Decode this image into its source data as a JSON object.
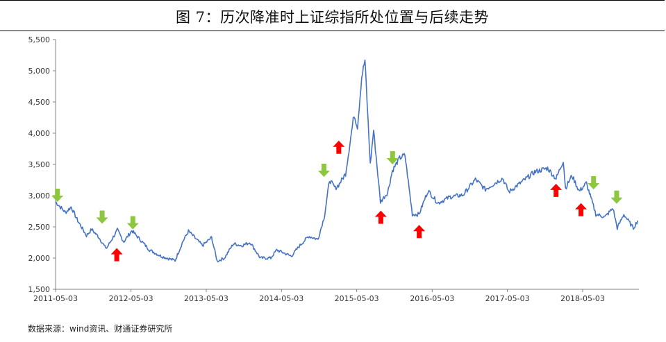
{
  "title": "图 7：历次降准时上证综指所处位置与后续走势",
  "source": "数据来源：wind资讯、财通证券研究所",
  "colors": {
    "line": "#4472C4",
    "up_arrow": "#FF0000",
    "down_arrow": "#8DC63F",
    "axis": "#808080"
  },
  "chart_data": {
    "type": "line",
    "title": "图 7：历次降准时上证综指所处位置与后续走势",
    "xlabel": "",
    "ylabel": "",
    "ylim": [
      1500,
      5500
    ],
    "yticks": [
      1500,
      2000,
      2500,
      3000,
      3500,
      4000,
      4500,
      5000,
      5500
    ],
    "ytick_labels": [
      "1,500",
      "2,000",
      "2,500",
      "3,000",
      "3,500",
      "4,000",
      "4,500",
      "5,000",
      "5,500"
    ],
    "xlim": [
      "2011-05-03",
      "2019-01-31"
    ],
    "xticks": [
      "2011-05-03",
      "2012-05-03",
      "2013-05-03",
      "2014-05-03",
      "2015-05-03",
      "2016-05-03",
      "2017-05-03",
      "2018-05-03"
    ],
    "grid": false,
    "legend": "none",
    "series": [
      {
        "points": [
          [
            "2011-05-03",
            2900
          ],
          [
            "2011-06-20",
            2730
          ],
          [
            "2011-07-18",
            2820
          ],
          [
            "2011-08-15",
            2620
          ],
          [
            "2011-09-30",
            2360
          ],
          [
            "2011-10-25",
            2460
          ],
          [
            "2011-11-30",
            2330
          ],
          [
            "2011-12-28",
            2180
          ],
          [
            "2012-01-06",
            2160
          ],
          [
            "2012-02-27",
            2450
          ],
          [
            "2012-03-29",
            2260
          ],
          [
            "2012-05-07",
            2440
          ],
          [
            "2012-06-15",
            2300
          ],
          [
            "2012-08-01",
            2130
          ],
          [
            "2012-09-26",
            2030
          ],
          [
            "2012-12-03",
            1960
          ],
          [
            "2013-01-10",
            2270
          ],
          [
            "2013-02-06",
            2430
          ],
          [
            "2013-04-15",
            2200
          ],
          [
            "2013-05-29",
            2330
          ],
          [
            "2013-06-25",
            1950
          ],
          [
            "2013-07-30",
            2000
          ],
          [
            "2013-09-12",
            2230
          ],
          [
            "2013-10-21",
            2200
          ],
          [
            "2013-12-03",
            2250
          ],
          [
            "2014-01-20",
            2000
          ],
          [
            "2014-03-12",
            2000
          ],
          [
            "2014-04-10",
            2130
          ],
          [
            "2014-06-20",
            2030
          ],
          [
            "2014-07-28",
            2190
          ],
          [
            "2014-09-12",
            2350
          ],
          [
            "2014-10-27",
            2300
          ],
          [
            "2014-11-28",
            2680
          ],
          [
            "2014-12-22",
            3250
          ],
          [
            "2015-01-19",
            3120
          ],
          [
            "2015-02-04",
            3170
          ],
          [
            "2015-03-10",
            3350
          ],
          [
            "2015-04-20",
            4300
          ],
          [
            "2015-05-07",
            4100
          ],
          [
            "2015-05-27",
            4900
          ],
          [
            "2015-06-12",
            5170
          ],
          [
            "2015-07-08",
            3500
          ],
          [
            "2015-07-24",
            4050
          ],
          [
            "2015-08-26",
            2900
          ],
          [
            "2015-09-30",
            3050
          ],
          [
            "2015-10-23",
            3400
          ],
          [
            "2015-11-27",
            3600
          ],
          [
            "2015-12-23",
            3650
          ],
          [
            "2016-01-28",
            2700
          ],
          [
            "2016-02-29",
            2700
          ],
          [
            "2016-04-13",
            3080
          ],
          [
            "2016-05-31",
            2880
          ],
          [
            "2016-07-29",
            2980
          ],
          [
            "2016-09-30",
            3010
          ],
          [
            "2016-11-29",
            3260
          ],
          [
            "2017-01-16",
            3100
          ],
          [
            "2017-04-10",
            3280
          ],
          [
            "2017-05-10",
            3060
          ],
          [
            "2017-07-24",
            3250
          ],
          [
            "2017-09-12",
            3380
          ],
          [
            "2017-11-14",
            3440
          ],
          [
            "2017-12-25",
            3270
          ],
          [
            "2018-01-29",
            3560
          ],
          [
            "2018-02-09",
            3120
          ],
          [
            "2018-03-12",
            3320
          ],
          [
            "2018-04-17",
            3070
          ],
          [
            "2018-05-21",
            3200
          ],
          [
            "2018-06-20",
            2880
          ],
          [
            "2018-07-06",
            2700
          ],
          [
            "2018-08-20",
            2660
          ],
          [
            "2018-09-27",
            2800
          ],
          [
            "2018-10-18",
            2480
          ],
          [
            "2018-11-19",
            2700
          ],
          [
            "2018-12-14",
            2580
          ],
          [
            "2019-01-04",
            2480
          ],
          [
            "2019-01-25",
            2600
          ]
        ]
      }
    ],
    "markers": [
      {
        "kind": "down",
        "date": "2011-05-12",
        "value": 2900
      },
      {
        "kind": "down",
        "date": "2011-12-15",
        "value": 2550
      },
      {
        "kind": "up",
        "date": "2012-02-24",
        "value": 2160
      },
      {
        "kind": "down",
        "date": "2012-05-12",
        "value": 2460
      },
      {
        "kind": "up",
        "date": "2015-02-05",
        "value": 3880
      },
      {
        "kind": "down",
        "date": "2014-11-25",
        "value": 3300
      },
      {
        "kind": "up",
        "date": "2015-08-28",
        "value": 2760
      },
      {
        "kind": "down",
        "date": "2015-10-24",
        "value": 3500
      },
      {
        "kind": "up",
        "date": "2016-03-01",
        "value": 2530
      },
      {
        "kind": "up",
        "date": "2017-12-25",
        "value": 3190
      },
      {
        "kind": "up",
        "date": "2018-04-25",
        "value": 2880
      },
      {
        "kind": "down",
        "date": "2018-06-25",
        "value": 3100
      },
      {
        "kind": "down",
        "date": "2018-10-15",
        "value": 2870
      }
    ]
  }
}
